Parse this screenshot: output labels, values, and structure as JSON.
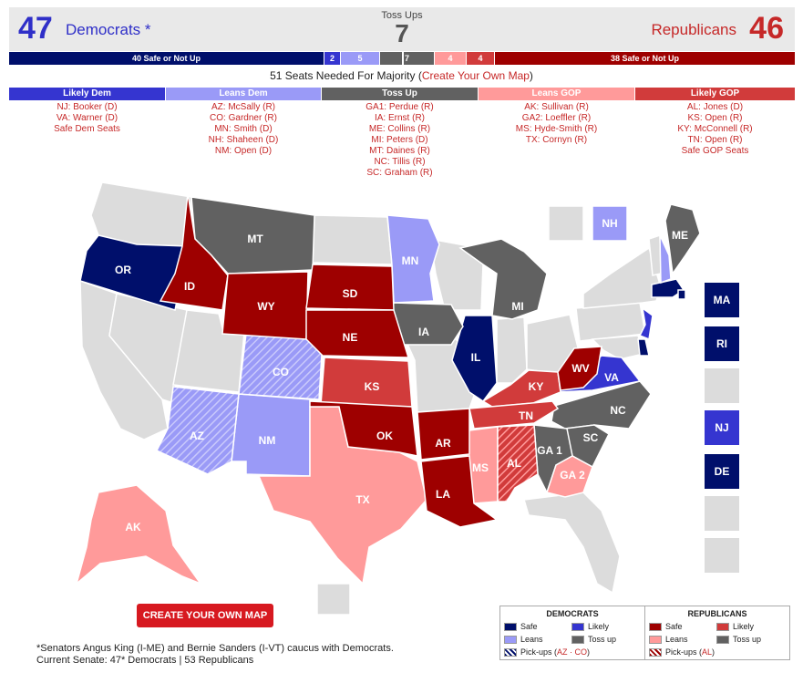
{
  "header": {
    "dem_count": "47",
    "dem_label": "Democrats *",
    "tossup_label": "Toss Ups",
    "tossup_count": "7",
    "gop_label": "Republicans",
    "gop_count": "46"
  },
  "seat_bar": {
    "dem_safe": "40 Safe or Not Up",
    "dem_likely": "2",
    "dem_leans": "5",
    "tossup": "7",
    "gop_leans": "4",
    "gop_likely": "4",
    "gop_safe": "38 Safe or Not Up"
  },
  "majority": {
    "text": "51 Seats Needed For Majority",
    "link": "Create Your Own Map"
  },
  "colors": {
    "safe_dem": "#000f6b",
    "likely_dem": "#3535d0",
    "leans_dem": "#9a9af7",
    "tossup": "#616161",
    "leans_gop": "#ff9a9a",
    "likely_gop": "#d13b3b",
    "safe_gop": "#9e0000",
    "not_up": "#dcdcdc"
  },
  "ratings": {
    "likely_dem": {
      "title": "Likely Dem",
      "items": [
        "NJ: Booker (D)",
        "VA: Warner (D)",
        "Safe Dem Seats"
      ]
    },
    "leans_dem": {
      "title": "Leans Dem",
      "items": [
        "AZ: McSally (R)",
        "CO: Gardner (R)",
        "MN: Smith (D)",
        "NH: Shaheen (D)",
        "NM: Open (D)"
      ]
    },
    "toss_up": {
      "title": "Toss Up",
      "items": [
        "GA1: Perdue (R)",
        "IA: Ernst (R)",
        "ME: Collins (R)",
        "MI: Peters (D)",
        "MT: Daines (R)",
        "NC: Tillis (R)",
        "SC: Graham (R)"
      ]
    },
    "leans_gop": {
      "title": "Leans GOP",
      "items": [
        "AK: Sullivan (R)",
        "GA2: Loeffler (R)",
        "MS: Hyde-Smith (R)",
        "TX: Cornyn (R)"
      ]
    },
    "likely_gop": {
      "title": "Likely GOP",
      "items": [
        "AL: Jones (D)",
        "KS: Open (R)",
        "KY: McConnell (R)",
        "TN: Open (R)",
        "Safe GOP Seats"
      ]
    }
  },
  "map_labels": {
    "OR": "OR",
    "ID": "ID",
    "MT": "MT",
    "WY": "WY",
    "SD": "SD",
    "MN": "MN",
    "NE": "NE",
    "IA": "IA",
    "CO": "CO",
    "KS": "KS",
    "IL": "IL",
    "MI": "MI",
    "KY": "KY",
    "WV": "WV",
    "VA": "VA",
    "AZ": "AZ",
    "NM": "NM",
    "OK": "OK",
    "AR": "AR",
    "TN": "TN",
    "NC": "NC",
    "SC": "SC",
    "GA1": "GA 1",
    "GA2": "GA 2",
    "MS": "MS",
    "AL": "AL",
    "LA": "LA",
    "TX": "TX",
    "AK": "AK",
    "ME": "ME",
    "NH": "NH"
  },
  "side_boxes": {
    "MA": "MA",
    "RI": "RI",
    "NJ": "NJ",
    "DE": "DE"
  },
  "create_button": "CREATE YOUR OWN MAP",
  "footnote": {
    "line1": "*Senators Angus King (I-ME) and Bernie Sanders (I-VT) caucus with Democrats.",
    "line2": "Current Senate: 47* Democrats | 53 Republicans"
  },
  "legend": {
    "dem_title": "DEMOCRATS",
    "gop_title": "REPUBLICANS",
    "dem_safe": "Safe",
    "dem_likely": "Likely",
    "dem_leans": "Leans",
    "dem_tossup": "Toss up",
    "dem_pickups": "Pick-ups (",
    "dem_pickups_states": "AZ · CO",
    "dem_pickups_close": ")",
    "gop_safe": "Safe",
    "gop_likely": "Likely",
    "gop_leans": "Leans",
    "gop_tossup": "Toss up",
    "gop_pickups": "Pick-ups (",
    "gop_pickups_states": "AL",
    "gop_pickups_close": ")"
  }
}
